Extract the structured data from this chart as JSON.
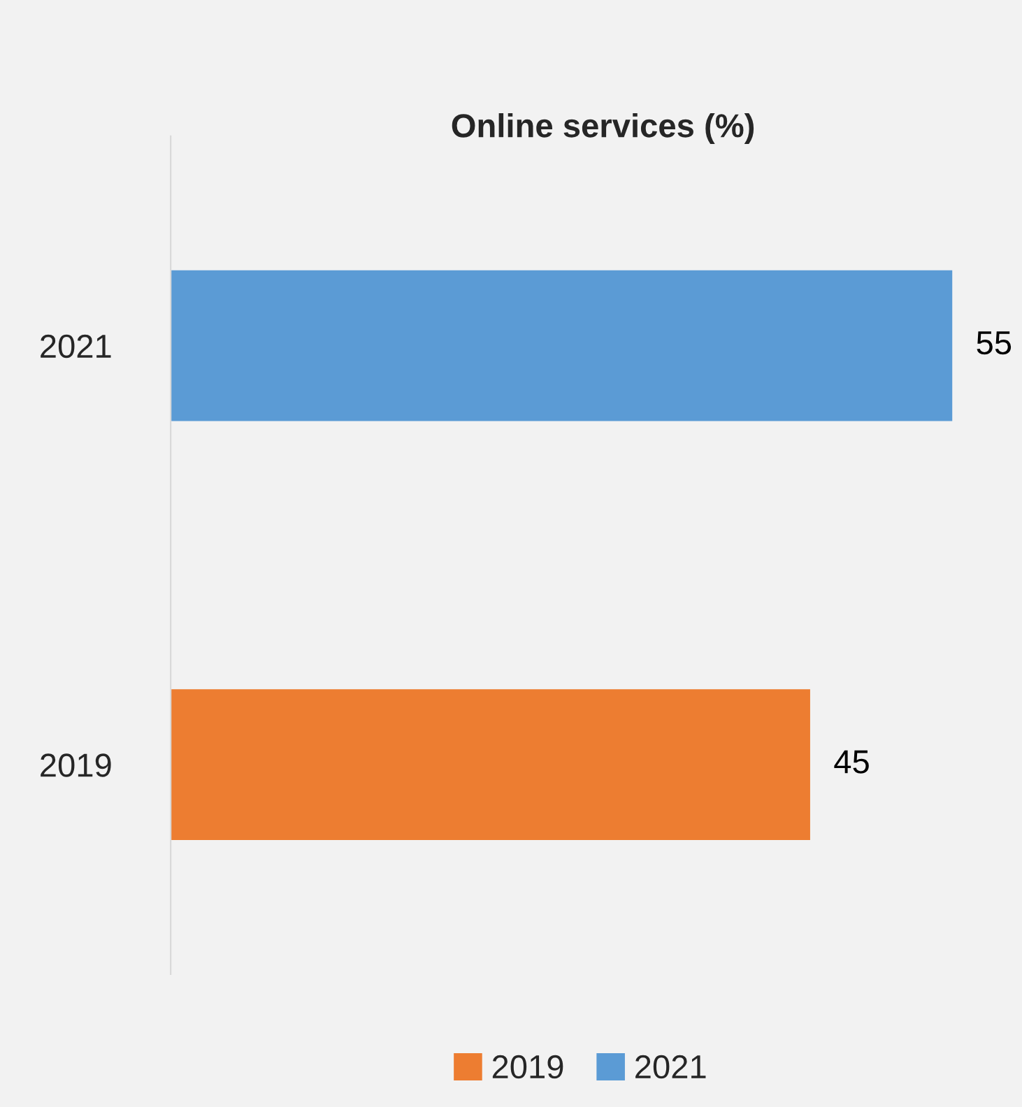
{
  "chart_data": {
    "type": "bar",
    "orientation": "horizontal",
    "title": "Online services (%)",
    "categories": [
      "2021",
      "2019"
    ],
    "series": [
      {
        "name": "2019",
        "color": "#ed7d31",
        "values": [
          null,
          45
        ]
      },
      {
        "name": "2021",
        "color": "#5b9bd5",
        "values": [
          55,
          null
        ]
      }
    ],
    "data_labels": true,
    "grid": false,
    "legend": "bottom",
    "tick_labels": "y"
  }
}
